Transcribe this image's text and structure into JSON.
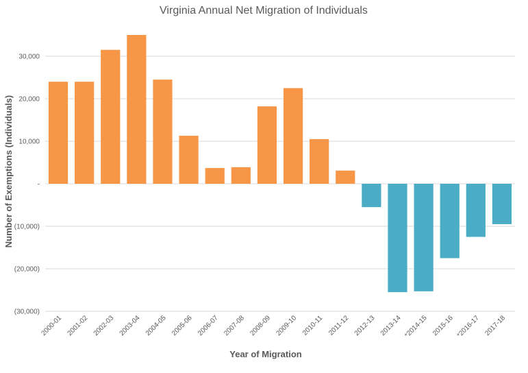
{
  "chart_data": {
    "type": "bar",
    "title": "Virginia Annual Net Migration of Individuals",
    "xlabel": "Year of Migration",
    "ylabel": "Number of Exemptions (Individuals)",
    "categories": [
      "2000-01",
      "2001-02",
      "2002-03",
      "2003-04",
      "2004-05",
      "2005-06",
      "2006-07",
      "2007-08",
      "2008-09",
      "2009-10",
      "2010-11",
      "2011-12",
      "2012-13",
      "2013-14",
      "*2014-15",
      "2015-16",
      "*2016-17",
      "2017-18"
    ],
    "values": [
      24000,
      24000,
      31500,
      35000,
      24500,
      11300,
      3700,
      3900,
      18200,
      22500,
      10500,
      3100,
      -5500,
      -25500,
      -25300,
      -17500,
      -12500,
      -9500
    ],
    "ylim": [
      -30000,
      40000
    ],
    "yticks": [
      {
        "value": 30000,
        "label": "30,000"
      },
      {
        "value": 20000,
        "label": "20,000"
      },
      {
        "value": 10000,
        "label": "10,000"
      },
      {
        "value": 0,
        "label": "-"
      },
      {
        "value": -10000,
        "label": "(10,000)"
      },
      {
        "value": -20000,
        "label": "(20,000)"
      },
      {
        "value": -30000,
        "label": "(30,000)"
      }
    ],
    "colors": {
      "positive": "#F79646",
      "negative": "#4BACC6",
      "grid": "#D9D9D9",
      "text": "#595959"
    },
    "grid": true,
    "legend": "none"
  }
}
